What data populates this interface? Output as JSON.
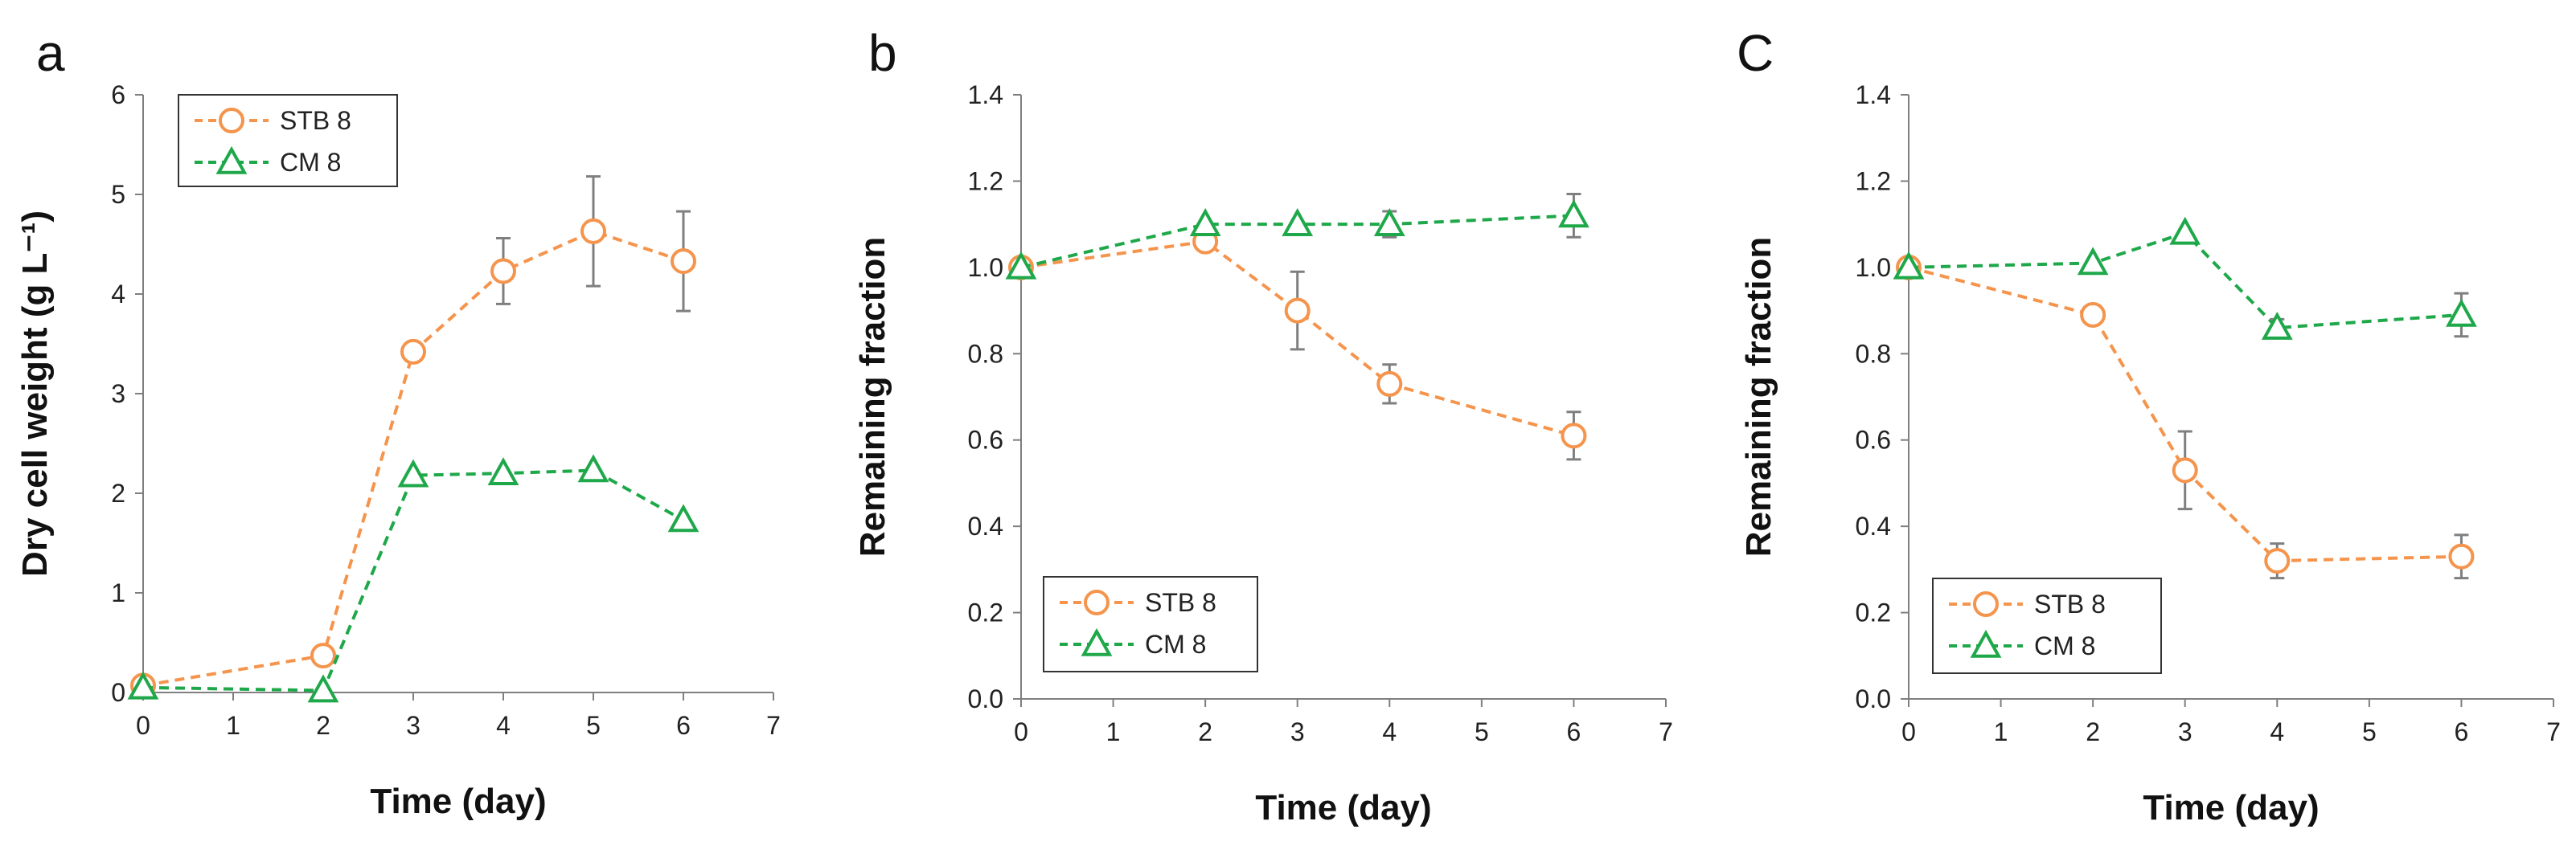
{
  "colors": {
    "stb": "#f5944c",
    "cm": "#1fa84a",
    "error_bar": "#7f7f7f",
    "axis": "#7f7f7f"
  },
  "chart_data": [
    {
      "id": "a",
      "type": "line",
      "panel_label": "a",
      "xlabel": "Time (day)",
      "ylabel": "Dry cell weight (g L⁻¹)",
      "xlim": [
        0,
        7
      ],
      "ylim": [
        0,
        6
      ],
      "xticks": [
        0,
        1,
        2,
        3,
        4,
        5,
        6,
        7
      ],
      "yticks": [
        0,
        1,
        2,
        3,
        4,
        5,
        6
      ],
      "ytick_labels": [
        "0",
        "1",
        "2",
        "3",
        "4",
        "5",
        "6"
      ],
      "legend": "top-left",
      "series": [
        {
          "name": "STB 8",
          "marker": "circle",
          "x": [
            0,
            2,
            3,
            4,
            5,
            6
          ],
          "y": [
            0.07,
            0.37,
            3.42,
            4.23,
            4.63,
            4.33
          ],
          "err": [
            0,
            0,
            0,
            0.33,
            0.55,
            0.5
          ]
        },
        {
          "name": "CM 8",
          "marker": "triangle",
          "x": [
            0,
            2,
            3,
            4,
            5,
            6
          ],
          "y": [
            0.05,
            0.02,
            2.18,
            2.2,
            2.23,
            1.73
          ],
          "err": [
            0,
            0,
            0,
            0,
            0,
            0
          ]
        }
      ]
    },
    {
      "id": "b",
      "type": "line",
      "panel_label": "b",
      "xlabel": "Time (day)",
      "ylabel": "Remaining fraction",
      "xlim": [
        0,
        7
      ],
      "ylim": [
        0,
        1.4
      ],
      "xticks": [
        0,
        1,
        2,
        3,
        4,
        5,
        6,
        7
      ],
      "yticks": [
        0,
        0.2,
        0.4,
        0.6,
        0.8,
        1.0,
        1.2,
        1.4
      ],
      "ytick_labels": [
        "0.0",
        "0.2",
        "0.4",
        "0.6",
        "0.8",
        "1.0",
        "1.2",
        "1.4"
      ],
      "legend": "bottom-left",
      "series": [
        {
          "name": "STB 8",
          "marker": "circle",
          "x": [
            0,
            2,
            3,
            4,
            6
          ],
          "y": [
            1.0,
            1.06,
            0.9,
            0.73,
            0.61
          ],
          "err": [
            0,
            0,
            0.09,
            0.045,
            0.055
          ]
        },
        {
          "name": "CM 8",
          "marker": "triangle",
          "x": [
            0,
            2,
            3,
            4,
            6
          ],
          "y": [
            1.0,
            1.1,
            1.1,
            1.1,
            1.12
          ],
          "err": [
            0,
            0,
            0,
            0.03,
            0.05
          ]
        }
      ]
    },
    {
      "id": "c",
      "type": "line",
      "panel_label": "C",
      "xlabel": "Time (day)",
      "ylabel": "Remaining fraction",
      "xlim": [
        0,
        7
      ],
      "ylim": [
        0,
        1.4
      ],
      "xticks": [
        0,
        1,
        2,
        3,
        4,
        5,
        6,
        7
      ],
      "yticks": [
        0,
        0.2,
        0.4,
        0.6,
        0.8,
        1.0,
        1.2,
        1.4
      ],
      "ytick_labels": [
        "0.0",
        "0.2",
        "0.4",
        "0.6",
        "0.8",
        "1.0",
        "1.2",
        "1.4"
      ],
      "legend": "bottom-left",
      "series": [
        {
          "name": "STB 8",
          "marker": "circle",
          "x": [
            0,
            2,
            3,
            4,
            6
          ],
          "y": [
            1.0,
            0.89,
            0.53,
            0.32,
            0.33
          ],
          "err": [
            0,
            0,
            0.09,
            0.04,
            0.05
          ]
        },
        {
          "name": "CM 8",
          "marker": "triangle",
          "x": [
            0,
            2,
            3,
            4,
            6
          ],
          "y": [
            1.0,
            1.01,
            1.08,
            0.86,
            0.89
          ],
          "err": [
            0,
            0,
            0,
            0.02,
            0.05
          ]
        }
      ]
    }
  ]
}
